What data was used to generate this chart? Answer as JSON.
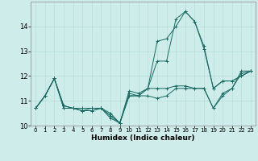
{
  "xlabel": "Humidex (Indice chaleur)",
  "bg_color": "#ceecea",
  "grid_color": "#b8deda",
  "line_color": "#1a6b63",
  "xlim": [
    -0.5,
    23.5
  ],
  "ylim": [
    10,
    15
  ],
  "yticks": [
    10,
    11,
    12,
    13,
    14
  ],
  "xticks": [
    0,
    1,
    2,
    3,
    4,
    5,
    6,
    7,
    8,
    9,
    10,
    11,
    12,
    13,
    14,
    15,
    16,
    17,
    18,
    19,
    20,
    21,
    22,
    23
  ],
  "series": [
    [
      10.7,
      11.2,
      11.9,
      10.7,
      10.7,
      10.7,
      10.7,
      10.7,
      10.3,
      10.1,
      11.3,
      11.2,
      11.2,
      11.1,
      11.2,
      11.5,
      11.5,
      11.5,
      11.5,
      10.7,
      11.2,
      11.5,
      12.1,
      12.2
    ],
    [
      10.7,
      11.2,
      11.9,
      10.8,
      10.7,
      10.6,
      10.6,
      10.7,
      10.4,
      10.1,
      11.2,
      11.2,
      11.5,
      13.4,
      13.5,
      14.0,
      14.6,
      14.2,
      13.1,
      11.5,
      11.8,
      11.8,
      12.0,
      12.2
    ],
    [
      10.7,
      11.2,
      11.9,
      10.8,
      10.7,
      10.6,
      10.6,
      10.7,
      10.4,
      10.1,
      11.2,
      11.2,
      11.5,
      12.6,
      12.6,
      14.3,
      14.6,
      14.2,
      13.2,
      11.5,
      11.8,
      11.8,
      12.0,
      12.2
    ],
    [
      10.7,
      11.2,
      11.9,
      10.7,
      10.7,
      10.6,
      10.7,
      10.7,
      10.5,
      10.1,
      11.4,
      11.3,
      11.5,
      11.5,
      11.5,
      11.6,
      11.6,
      11.5,
      11.5,
      10.7,
      11.3,
      11.5,
      12.2,
      12.2
    ]
  ]
}
